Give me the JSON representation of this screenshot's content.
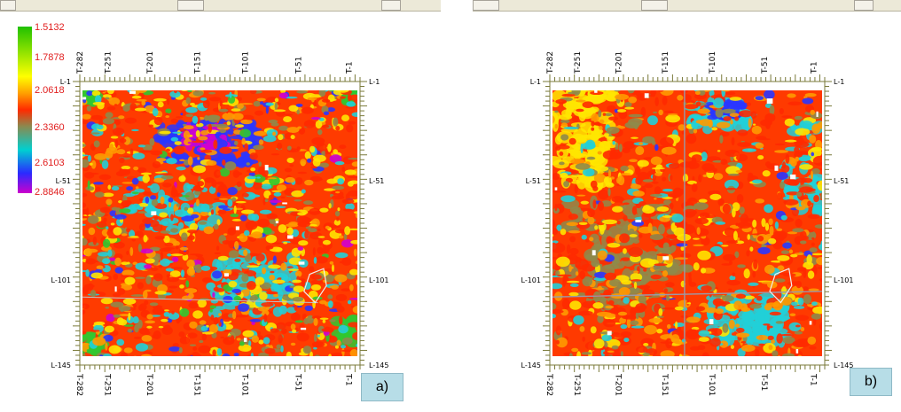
{
  "panels": [
    {
      "id": "a",
      "tag": "a)",
      "top_ticks": [
        "T-282",
        "T-251",
        "T-201",
        "T-151",
        "T-101",
        "T-51",
        "T-1"
      ],
      "bottom_ticks": [
        "T-282",
        "T-251",
        "T-201",
        "T-151",
        "T-101",
        "T-51",
        "T-1"
      ],
      "left_ticks": [
        "L-1",
        "L-51",
        "L-101",
        "L-145"
      ],
      "right_ticks": [
        "L-1",
        "L-51",
        "L-101",
        "L-145"
      ]
    },
    {
      "id": "b",
      "tag": "b)",
      "top_ticks": [
        "T-282",
        "T-251",
        "T-201",
        "T-151",
        "T-101",
        "T-51",
        "T-1"
      ],
      "bottom_ticks": [
        "T-282",
        "T-251",
        "T-201",
        "T-151",
        "T-101",
        "T-51",
        "T-1"
      ],
      "left_ticks": [
        "L-1",
        "L-51",
        "L-101",
        "L-145"
      ],
      "right_ticks": [
        "L-1",
        "L-51",
        "L-101",
        "L-145"
      ]
    }
  ],
  "colorbar": {
    "labels": [
      "1.5132",
      "1.7878",
      "2.0618",
      "2.3360",
      "2.6103",
      "2.8846"
    ],
    "label_color": "#e11d1d",
    "colors": [
      "#20c000",
      "#86e000",
      "#ffff00",
      "#ffa000",
      "#ff2a00",
      "#8a8a50",
      "#00d0d0",
      "#2a2aff",
      "#cc00cc"
    ]
  },
  "map_colors": {
    "red": "#ff2a00",
    "orange": "#ff9a00",
    "yellow": "#ffe600",
    "olive": "#8f8a4a",
    "cyan": "#21d0d8",
    "blue": "#2a36ff",
    "magenta": "#d000d0",
    "green": "#30c830"
  }
}
